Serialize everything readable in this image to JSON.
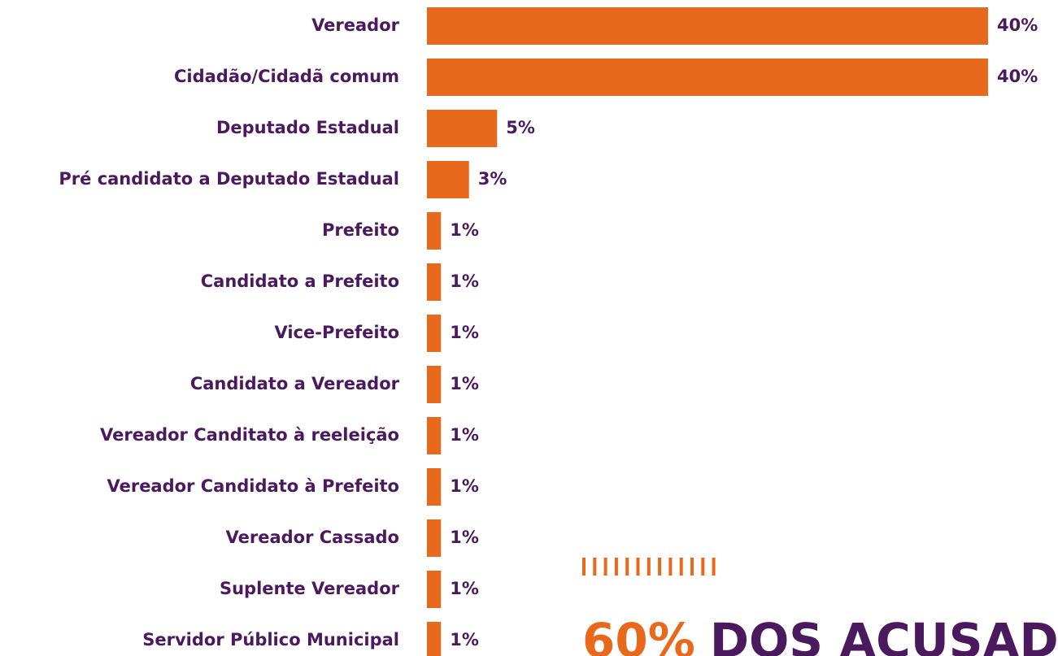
{
  "chart_data": {
    "type": "barh",
    "color": "#e8691b",
    "categories": [
      "Vereador",
      "Cidadão/Cidadã comum",
      "Deputado Estadual",
      "Pré candidato a Deputado Estadual",
      "Prefeito",
      "Candidato a Prefeito",
      "Vice-Prefeito",
      "Candidato a Vereador",
      "Vereador Canditato à reeleição",
      "Vereador Candidato à Prefeito",
      "Vereador Cassado",
      "Suplente Vereador",
      "Servidor Público Municipal"
    ],
    "values": [
      40,
      40,
      5,
      3,
      1,
      1,
      1,
      1,
      1,
      1,
      1,
      1,
      1
    ],
    "value_labels": [
      "40%",
      "40%",
      "5%",
      "3%",
      "1%",
      "1%",
      "1%",
      "1%",
      "1%",
      "1%",
      "1%",
      "1%",
      "1%"
    ],
    "annotation": {
      "highlight": "60%",
      "text": "DOS ACUSADOS"
    }
  }
}
